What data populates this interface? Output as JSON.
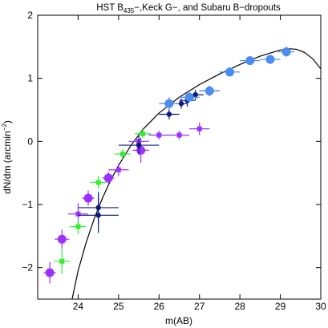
{
  "chart_data": {
    "type": "scatter",
    "title_parts": {
      "prefix": "HST B",
      "sub": "435",
      "rest": "−,Keck G−, and Subaru B−dropouts"
    },
    "xlabel": "m(AB)",
    "ylabel_parts": {
      "main": "dN/dm (arcmin",
      "sup": "−2",
      "end": ")"
    },
    "xlim": [
      23,
      30
    ],
    "ylim": [
      -2.5,
      2
    ],
    "x_ticks": [
      24,
      25,
      26,
      27,
      28,
      29,
      30
    ],
    "y_ticks": [
      -2,
      -1,
      0,
      1,
      2
    ],
    "grid": false,
    "colors": {
      "purple": "#9b30ff",
      "light_blue": "#4a8cf0",
      "dark_navy": "#0c1a80",
      "green": "#33ee33",
      "curve": "#000000"
    },
    "series": [
      {
        "marker": "circle-large",
        "color": "#9b30ff",
        "points": [
          {
            "x": 23.3,
            "y": -2.08,
            "xerr": 0.15,
            "yerr": 0.17
          },
          {
            "x": 23.6,
            "y": -1.55,
            "xerr": 0.18,
            "yerr": 0.15
          },
          {
            "x": 24.25,
            "y": -0.9,
            "xerr": 0.15,
            "yerr": 0.12
          },
          {
            "x": 24.75,
            "y": -0.58,
            "xerr": 0.15,
            "yerr": 0.1
          },
          {
            "x": 25.55,
            "y": -0.14,
            "xerr": 0.2,
            "yerr": 0.2
          }
        ]
      },
      {
        "marker": "square",
        "color": "#9b30ff",
        "points": [
          {
            "x": 24.0,
            "y": -1.15,
            "xerr": 0.25,
            "yerr": 0.17
          },
          {
            "x": 25.0,
            "y": -0.45,
            "xerr": 0.25,
            "yerr": 0.1
          },
          {
            "x": 25.5,
            "y": 0.0,
            "xerr": 0.25,
            "yerr": 0.1
          },
          {
            "x": 26.0,
            "y": 0.1,
            "xerr": 0.25,
            "yerr": 0.07
          },
          {
            "x": 26.5,
            "y": 0.1,
            "xerr": 0.25,
            "yerr": 0.07
          },
          {
            "x": 27.0,
            "y": 0.2,
            "xerr": 0.25,
            "yerr": 0.1
          }
        ]
      },
      {
        "marker": "square",
        "color": "#33ee33",
        "points": [
          {
            "x": 23.6,
            "y": -1.9,
            "xerr": 0.2,
            "yerr": 0.2
          },
          {
            "x": 24.0,
            "y": -1.35,
            "xerr": 0.2,
            "yerr": 0.12
          },
          {
            "x": 24.5,
            "y": -0.65,
            "xerr": 0.2,
            "yerr": 0.1
          },
          {
            "x": 25.1,
            "y": -0.2,
            "xerr": 0.2,
            "yerr": 0.08
          },
          {
            "x": 25.6,
            "y": 0.12,
            "xerr": 0.2,
            "yerr": 0.07
          }
        ]
      },
      {
        "marker": "circle-small",
        "color": "#0c1a80",
        "points": [
          {
            "x": 24.5,
            "y": -1.05,
            "xerr": 0.5,
            "yerr": 0.25
          },
          {
            "x": 24.5,
            "y": -1.17,
            "xerr": 0.5,
            "yerr": 0.28
          },
          {
            "x": 25.5,
            "y": -0.06,
            "xerr": 0.5,
            "yerr": 0.15
          },
          {
            "x": 26.25,
            "y": 0.43,
            "xerr": 0.25,
            "yerr": 0.08
          },
          {
            "x": 26.55,
            "y": 0.6,
            "xerr": 0.15,
            "yerr": 0.08
          },
          {
            "x": 26.7,
            "y": 0.65,
            "xerr": 0.2,
            "yerr": 0.1
          },
          {
            "x": 26.9,
            "y": 0.74,
            "xerr": 0.2,
            "yerr": 0.08
          },
          {
            "x": 27.25,
            "y": 0.8,
            "xerr": 0.25,
            "yerr": 0.08
          }
        ]
      },
      {
        "marker": "circle-large",
        "color": "#4a8cf0",
        "points": [
          {
            "x": 26.25,
            "y": 0.6,
            "xerr": 0.25,
            "yerr": 0.1
          },
          {
            "x": 26.75,
            "y": 0.7,
            "xerr": 0.25,
            "yerr": 0.08
          },
          {
            "x": 27.25,
            "y": 0.8,
            "xerr": 0.25,
            "yerr": 0.07
          },
          {
            "x": 27.75,
            "y": 1.1,
            "xerr": 0.25,
            "yerr": 0.07
          },
          {
            "x": 28.25,
            "y": 1.28,
            "xerr": 0.25,
            "yerr": 0.07
          },
          {
            "x": 28.75,
            "y": 1.3,
            "xerr": 0.25,
            "yerr": 0.07
          },
          {
            "x": 29.15,
            "y": 1.42,
            "xerr": 0.2,
            "yerr": 0.08
          }
        ]
      }
    ],
    "curve": {
      "style": "solid",
      "color": "#000000",
      "x": [
        23.85,
        24.0,
        24.2,
        24.4,
        24.6,
        24.8,
        25.0,
        25.3,
        25.6,
        26.0,
        26.5,
        27.0,
        27.5,
        28.0,
        28.5,
        29.0,
        29.2,
        29.4,
        29.6,
        29.8,
        30.0
      ],
      "y": [
        -2.5,
        -2.05,
        -1.6,
        -1.22,
        -0.9,
        -0.62,
        -0.38,
        -0.07,
        0.19,
        0.45,
        0.7,
        0.9,
        1.07,
        1.22,
        1.35,
        1.45,
        1.47,
        1.46,
        1.41,
        1.31,
        1.15
      ]
    }
  }
}
